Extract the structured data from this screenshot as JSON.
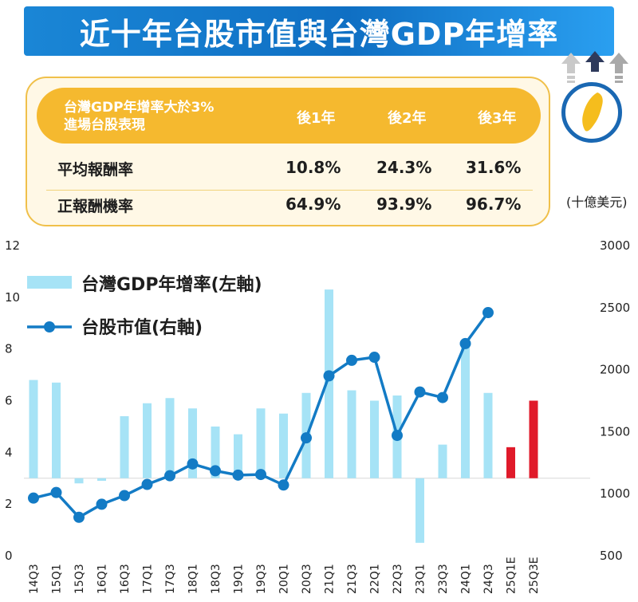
{
  "title": "近十年台股市值與台灣GDP年增率",
  "table": {
    "criteria_line1": "台灣GDP年增率大於3%",
    "criteria_line2": "進場台股表現",
    "col_headers": [
      "後1年",
      "後2年",
      "後3年"
    ],
    "rows": [
      {
        "label": "平均報酬率",
        "values": [
          "10.8%",
          "24.3%",
          "31.6%"
        ]
      },
      {
        "label": "正報酬機率",
        "values": [
          "64.9%",
          "93.9%",
          "96.7%"
        ]
      }
    ]
  },
  "icons": [
    "arrow-up-icon",
    "taiwan-map-icon"
  ],
  "colors": {
    "bar": "#a6e3f6",
    "bar_forecast": "#e01a2a",
    "line": "#137bc5",
    "banner": "#1a86d6",
    "card": "#f5b92f"
  },
  "chart_data": {
    "type": "bar+line",
    "unit_label": "(十億美元)",
    "categories": [
      "14Q3",
      "15Q1",
      "15Q3",
      "16Q1",
      "16Q3",
      "17Q1",
      "17Q3",
      "18Q1",
      "18Q3",
      "19Q1",
      "19Q3",
      "20Q1",
      "20Q3",
      "21Q1",
      "21Q3",
      "22Q1",
      "22Q3",
      "23Q1",
      "23Q3",
      "24Q1",
      "24Q3",
      "25Q1E",
      "25Q3E"
    ],
    "left_axis": {
      "ylim": [
        0,
        12
      ],
      "ticks": [
        "0",
        "2",
        "4",
        "6",
        "8",
        "10",
        "12"
      ],
      "baseline": 3
    },
    "right_axis": {
      "ylim": [
        500,
        3000
      ],
      "ticks": [
        "500",
        "1000",
        "1500",
        "2000",
        "2500",
        "3000"
      ]
    },
    "series": [
      {
        "name": "台灣GDP年增率(左軸)",
        "kind": "bar",
        "axis": "left",
        "values": [
          6.8,
          6.7,
          2.8,
          2.9,
          5.4,
          5.9,
          6.1,
          5.7,
          5.0,
          4.7,
          5.7,
          5.5,
          6.3,
          10.3,
          6.4,
          6.0,
          6.2,
          0.5,
          4.3,
          8.1,
          6.3,
          4.2,
          6.0
        ],
        "forecast_from_index": 21
      },
      {
        "name": "台股市值(右軸)",
        "kind": "line",
        "axis": "right",
        "values": [
          965,
          1010,
          810,
          915,
          985,
          1075,
          1145,
          1240,
          1185,
          1150,
          1155,
          1070,
          1450,
          1950,
          2075,
          2100,
          1470,
          1820,
          1775,
          2210,
          2460,
          null,
          null
        ]
      }
    ]
  }
}
